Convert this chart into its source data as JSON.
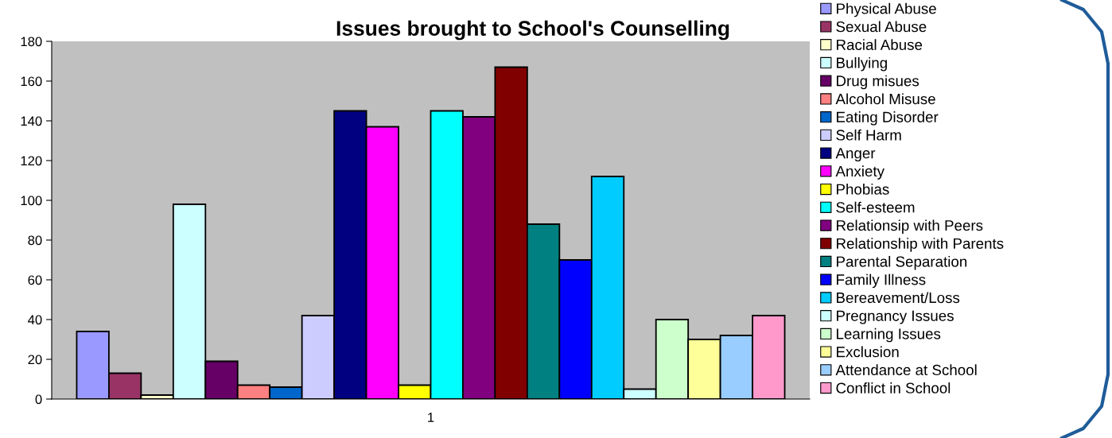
{
  "chart_data": {
    "type": "bar",
    "title": "Issues brought to School's Counselling",
    "categories": [
      "1"
    ],
    "series": [
      {
        "name": "Physical Abuse",
        "color": "#9999ff",
        "values": [
          34
        ]
      },
      {
        "name": "Sexual Abuse",
        "color": "#993366",
        "values": [
          13
        ]
      },
      {
        "name": "Racial Abuse",
        "color": "#ffffcc",
        "values": [
          2
        ]
      },
      {
        "name": "Bullying",
        "color": "#ccffff",
        "values": [
          98
        ]
      },
      {
        "name": "Drug misues",
        "color": "#660066",
        "values": [
          19
        ]
      },
      {
        "name": "Alcohol Misuse",
        "color": "#ff8080",
        "values": [
          7
        ]
      },
      {
        "name": "Eating Disorder",
        "color": "#0066cc",
        "values": [
          6
        ]
      },
      {
        "name": "Self Harm",
        "color": "#ccccff",
        "values": [
          42
        ]
      },
      {
        "name": "Anger",
        "color": "#000080",
        "values": [
          145
        ]
      },
      {
        "name": "Anxiety",
        "color": "#ff00ff",
        "values": [
          137
        ]
      },
      {
        "name": "Phobias",
        "color": "#ffff00",
        "values": [
          7
        ]
      },
      {
        "name": "Self-esteem",
        "color": "#00ffff",
        "values": [
          145
        ]
      },
      {
        "name": "Relationsip with Peers",
        "color": "#800080",
        "values": [
          142
        ]
      },
      {
        "name": "Relationship with Parents",
        "color": "#800000",
        "values": [
          167
        ]
      },
      {
        "name": "Parental Separation",
        "color": "#008080",
        "values": [
          88
        ]
      },
      {
        "name": "Family Illness",
        "color": "#0000ff",
        "values": [
          70
        ]
      },
      {
        "name": "Bereavement/Loss",
        "color": "#00ccff",
        "values": [
          112
        ]
      },
      {
        "name": "Pregnancy Issues",
        "color": "#ccffff",
        "values": [
          5
        ]
      },
      {
        "name": "Learning Issues",
        "color": "#ccffcc",
        "values": [
          40
        ]
      },
      {
        "name": "Exclusion",
        "color": "#ffff99",
        "values": [
          30
        ]
      },
      {
        "name": "Attendance at School",
        "color": "#99ccff",
        "values": [
          32
        ]
      },
      {
        "name": "Conflict in School",
        "color": "#ff99cc",
        "values": [
          42
        ]
      }
    ],
    "ylim": [
      0,
      180
    ],
    "yticks": [
      0,
      20,
      40,
      60,
      80,
      100,
      120,
      140,
      160,
      180
    ],
    "grid": false,
    "legend": "right"
  }
}
